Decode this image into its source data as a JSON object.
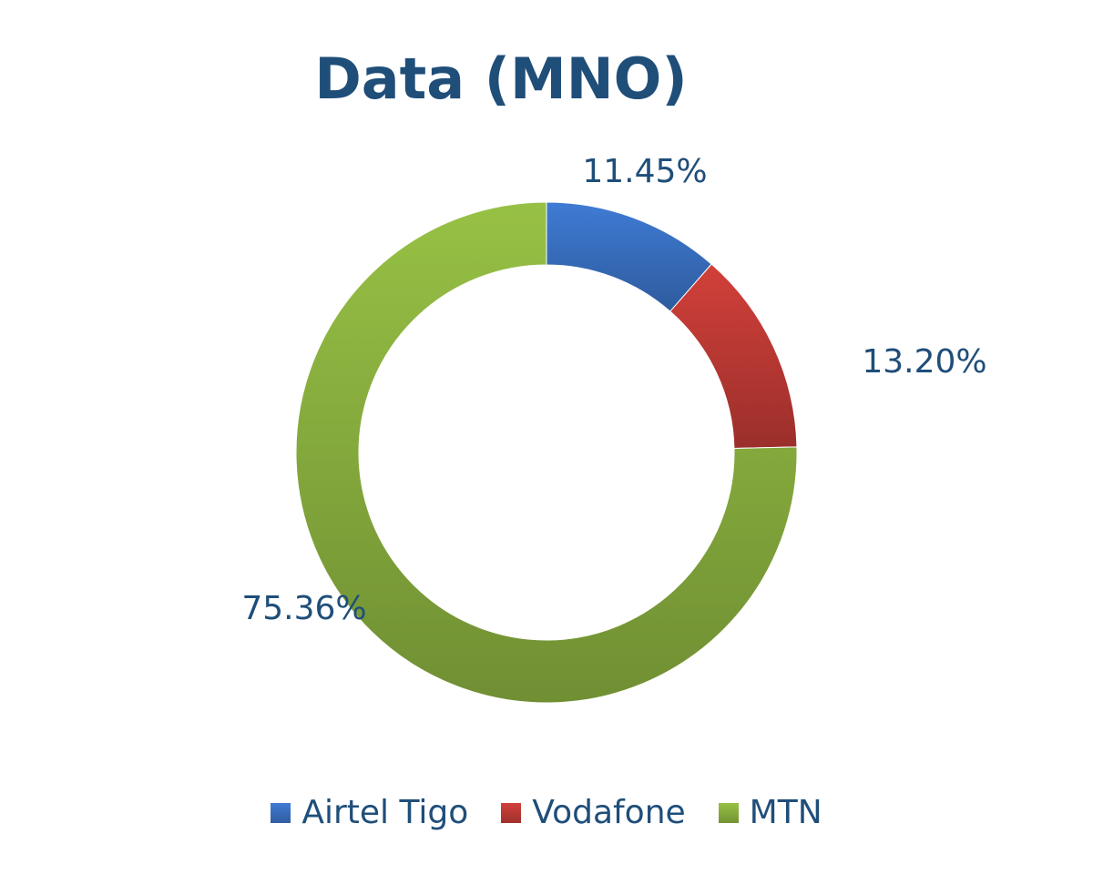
{
  "colors": {
    "title": "#1f4e79",
    "labels": "#1f4e79"
  },
  "chart_data": {
    "type": "pie",
    "variant": "donut",
    "title": "Data (MNO)",
    "categories": [
      "Airtel Tigo",
      "Vodafone",
      "MTN"
    ],
    "values": [
      11.45,
      13.2,
      75.36
    ],
    "unit": "%",
    "data_labels": [
      "11.45%",
      "13.20%",
      "75.36%"
    ],
    "colors": [
      "#3a72c4",
      "#c23b36",
      "#8cb340"
    ],
    "legend_position": "bottom"
  }
}
